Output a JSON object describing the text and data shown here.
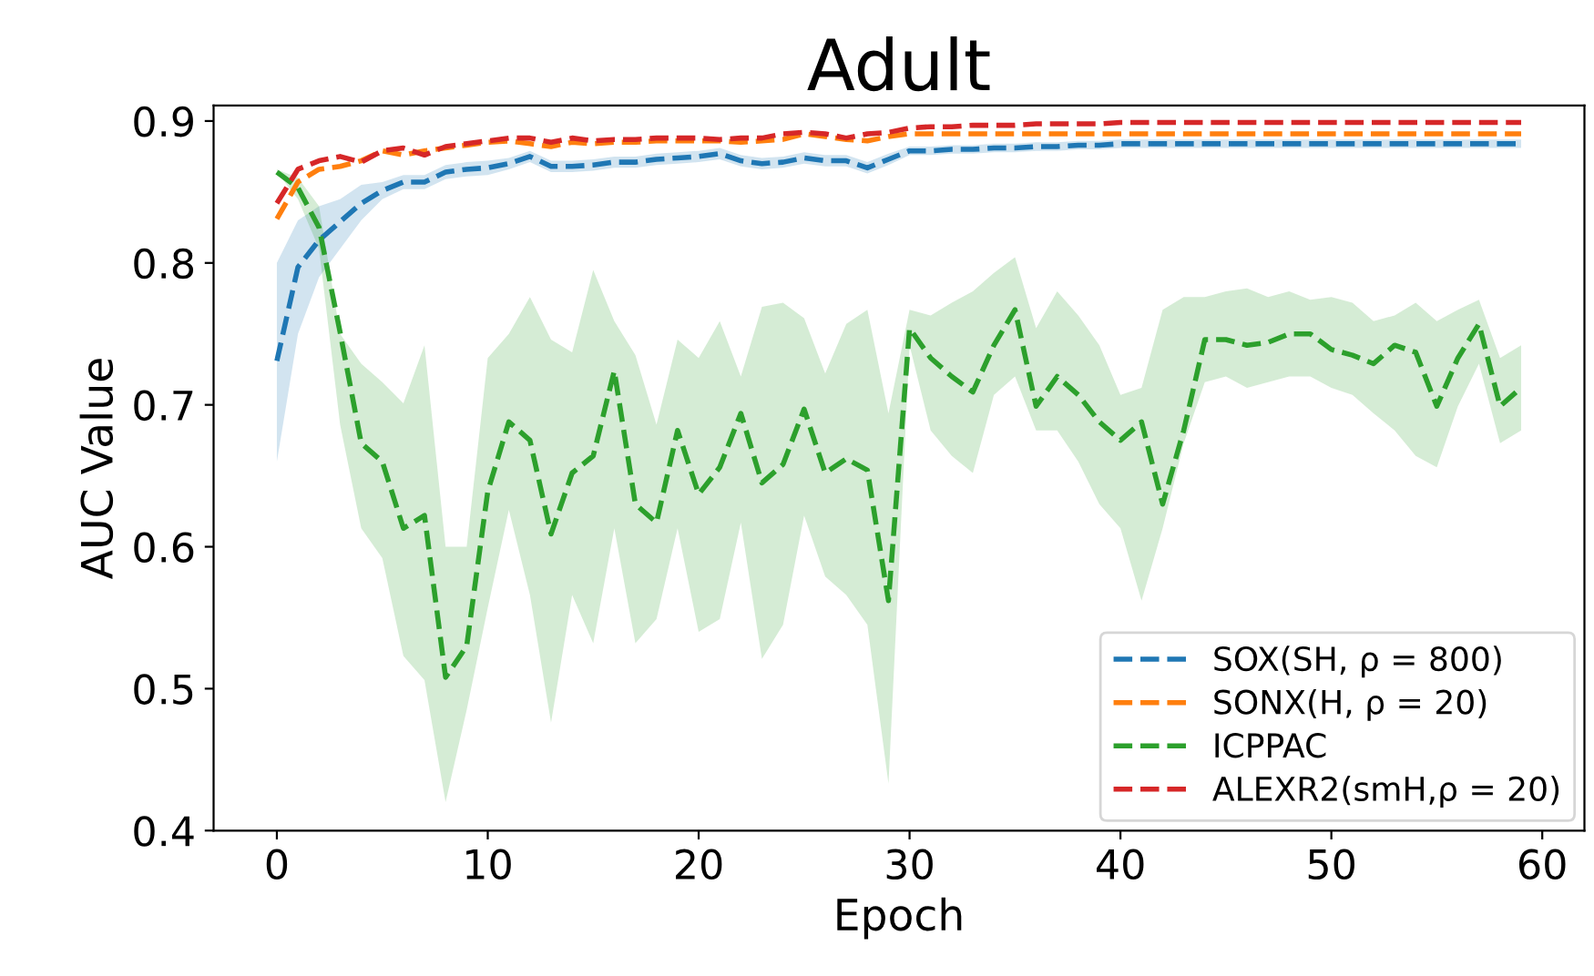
{
  "chart_data": {
    "type": "line",
    "title": "Adult",
    "xlabel": "Epoch",
    "ylabel": "AUC Value",
    "x": [
      0,
      1,
      2,
      3,
      4,
      5,
      6,
      7,
      8,
      9,
      10,
      11,
      12,
      13,
      14,
      15,
      16,
      17,
      18,
      19,
      20,
      21,
      22,
      23,
      24,
      25,
      26,
      27,
      28,
      29,
      30,
      31,
      32,
      33,
      34,
      35,
      36,
      37,
      38,
      39,
      40,
      41,
      42,
      43,
      44,
      45,
      46,
      47,
      48,
      49,
      50,
      51,
      52,
      53,
      54,
      55,
      56,
      57,
      58,
      59
    ],
    "series": [
      {
        "name": "SOX(SH, ρ = 800)",
        "color": "#1f77b4",
        "values": [
          0.731,
          0.797,
          0.816,
          0.829,
          0.842,
          0.851,
          0.857,
          0.857,
          0.864,
          0.866,
          0.867,
          0.87,
          0.875,
          0.868,
          0.868,
          0.869,
          0.871,
          0.871,
          0.873,
          0.874,
          0.875,
          0.877,
          0.872,
          0.87,
          0.871,
          0.874,
          0.872,
          0.872,
          0.867,
          0.873,
          0.879,
          0.879,
          0.88,
          0.88,
          0.881,
          0.881,
          0.882,
          0.882,
          0.883,
          0.883,
          0.884,
          0.884,
          0.884,
          0.884,
          0.884,
          0.884,
          0.884,
          0.884,
          0.884,
          0.884,
          0.884,
          0.884,
          0.884,
          0.884,
          0.884,
          0.884,
          0.884,
          0.884,
          0.884,
          0.884
        ],
        "lower": [
          0.66,
          0.75,
          0.79,
          0.81,
          0.83,
          0.845,
          0.852,
          0.852,
          0.859,
          0.861,
          0.862,
          0.866,
          0.871,
          0.864,
          0.864,
          0.865,
          0.867,
          0.867,
          0.869,
          0.87,
          0.871,
          0.873,
          0.868,
          0.866,
          0.867,
          0.87,
          0.868,
          0.868,
          0.863,
          0.869,
          0.876,
          0.876,
          0.877,
          0.877,
          0.878,
          0.878,
          0.879,
          0.879,
          0.88,
          0.88,
          0.881,
          0.881,
          0.881,
          0.881,
          0.881,
          0.881,
          0.881,
          0.881,
          0.881,
          0.881,
          0.881,
          0.881,
          0.881,
          0.881,
          0.881,
          0.881,
          0.881,
          0.881,
          0.881,
          0.881
        ],
        "upper": [
          0.8,
          0.83,
          0.84,
          0.845,
          0.855,
          0.857,
          0.862,
          0.862,
          0.869,
          0.871,
          0.872,
          0.874,
          0.879,
          0.872,
          0.872,
          0.873,
          0.875,
          0.875,
          0.877,
          0.878,
          0.879,
          0.881,
          0.876,
          0.874,
          0.875,
          0.878,
          0.876,
          0.876,
          0.871,
          0.877,
          0.882,
          0.882,
          0.883,
          0.883,
          0.884,
          0.884,
          0.885,
          0.885,
          0.886,
          0.886,
          0.887,
          0.887,
          0.887,
          0.887,
          0.887,
          0.887,
          0.887,
          0.887,
          0.887,
          0.887,
          0.887,
          0.887,
          0.887,
          0.887,
          0.887,
          0.887,
          0.887,
          0.887,
          0.887,
          0.887
        ]
      },
      {
        "name": "SONX(H, ρ = 20)",
        "color": "#ff7f0e",
        "values": [
          0.831,
          0.857,
          0.866,
          0.868,
          0.872,
          0.879,
          0.876,
          0.879,
          0.881,
          0.883,
          0.885,
          0.886,
          0.884,
          0.882,
          0.885,
          0.884,
          0.885,
          0.885,
          0.886,
          0.886,
          0.886,
          0.886,
          0.885,
          0.886,
          0.887,
          0.891,
          0.889,
          0.887,
          0.886,
          0.889,
          0.891,
          0.891,
          0.891,
          0.891,
          0.891,
          0.891,
          0.891,
          0.891,
          0.891,
          0.891,
          0.891,
          0.891,
          0.891,
          0.891,
          0.891,
          0.891,
          0.891,
          0.891,
          0.891,
          0.891,
          0.891,
          0.891,
          0.891,
          0.891,
          0.891,
          0.891,
          0.891,
          0.891,
          0.891,
          0.891
        ]
      },
      {
        "name": "ICPPAC",
        "color": "#2ca02c",
        "values": [
          0.864,
          0.853,
          0.825,
          0.751,
          0.673,
          0.66,
          0.613,
          0.622,
          0.508,
          0.53,
          0.639,
          0.688,
          0.675,
          0.609,
          0.652,
          0.664,
          0.724,
          0.63,
          0.617,
          0.682,
          0.637,
          0.656,
          0.694,
          0.645,
          0.658,
          0.697,
          0.652,
          0.662,
          0.654,
          0.562,
          0.754,
          0.733,
          0.72,
          0.709,
          0.742,
          0.767,
          0.699,
          0.72,
          0.707,
          0.688,
          0.675,
          0.688,
          0.63,
          0.682,
          0.746,
          0.746,
          0.742,
          0.744,
          0.75,
          0.75,
          0.739,
          0.735,
          0.729,
          0.742,
          0.737,
          0.699,
          0.733,
          0.757,
          0.699,
          0.712
        ],
        "lower": [
          0.864,
          0.845,
          0.81,
          0.686,
          0.613,
          0.592,
          0.523,
          0.506,
          0.42,
          0.485,
          0.557,
          0.626,
          0.566,
          0.476,
          0.566,
          0.532,
          0.613,
          0.532,
          0.549,
          0.613,
          0.54,
          0.549,
          0.617,
          0.521,
          0.545,
          0.622,
          0.579,
          0.566,
          0.545,
          0.433,
          0.742,
          0.682,
          0.664,
          0.652,
          0.707,
          0.72,
          0.682,
          0.682,
          0.66,
          0.63,
          0.613,
          0.562,
          0.613,
          0.673,
          0.716,
          0.72,
          0.712,
          0.716,
          0.72,
          0.72,
          0.712,
          0.707,
          0.694,
          0.682,
          0.664,
          0.656,
          0.699,
          0.729,
          0.673,
          0.682
        ],
        "upper": [
          0.866,
          0.86,
          0.84,
          0.75,
          0.729,
          0.716,
          0.701,
          0.742,
          0.6,
          0.6,
          0.733,
          0.75,
          0.776,
          0.746,
          0.737,
          0.795,
          0.759,
          0.735,
          0.686,
          0.746,
          0.733,
          0.759,
          0.72,
          0.769,
          0.772,
          0.761,
          0.722,
          0.757,
          0.767,
          0.694,
          0.767,
          0.763,
          0.772,
          0.78,
          0.793,
          0.804,
          0.754,
          0.78,
          0.763,
          0.742,
          0.707,
          0.712,
          0.767,
          0.776,
          0.776,
          0.78,
          0.782,
          0.776,
          0.78,
          0.774,
          0.776,
          0.772,
          0.759,
          0.763,
          0.772,
          0.759,
          0.767,
          0.774,
          0.733,
          0.742
        ]
      },
      {
        "name": "ALEXR2(smH,ρ = 20)",
        "color": "#d62728",
        "values": [
          0.842,
          0.866,
          0.872,
          0.875,
          0.871,
          0.879,
          0.881,
          0.876,
          0.882,
          0.884,
          0.886,
          0.888,
          0.888,
          0.885,
          0.888,
          0.886,
          0.887,
          0.887,
          0.888,
          0.888,
          0.888,
          0.887,
          0.888,
          0.888,
          0.891,
          0.892,
          0.891,
          0.888,
          0.891,
          0.892,
          0.895,
          0.896,
          0.896,
          0.897,
          0.897,
          0.897,
          0.898,
          0.898,
          0.898,
          0.898,
          0.899,
          0.899,
          0.899,
          0.899,
          0.899,
          0.899,
          0.899,
          0.899,
          0.899,
          0.899,
          0.899,
          0.899,
          0.899,
          0.899,
          0.899,
          0.899,
          0.899,
          0.899,
          0.899,
          0.899
        ]
      }
    ],
    "xlim": [
      -3,
      62
    ],
    "xticks": [
      0,
      10,
      20,
      30,
      40,
      50,
      60
    ],
    "ylim": [
      0.4,
      0.911
    ],
    "yticks": [
      0.4,
      0.5,
      0.6,
      0.7,
      0.8,
      0.9
    ],
    "line_style": "dashed",
    "marker": "none",
    "grid": false,
    "legend": "bottom right"
  }
}
